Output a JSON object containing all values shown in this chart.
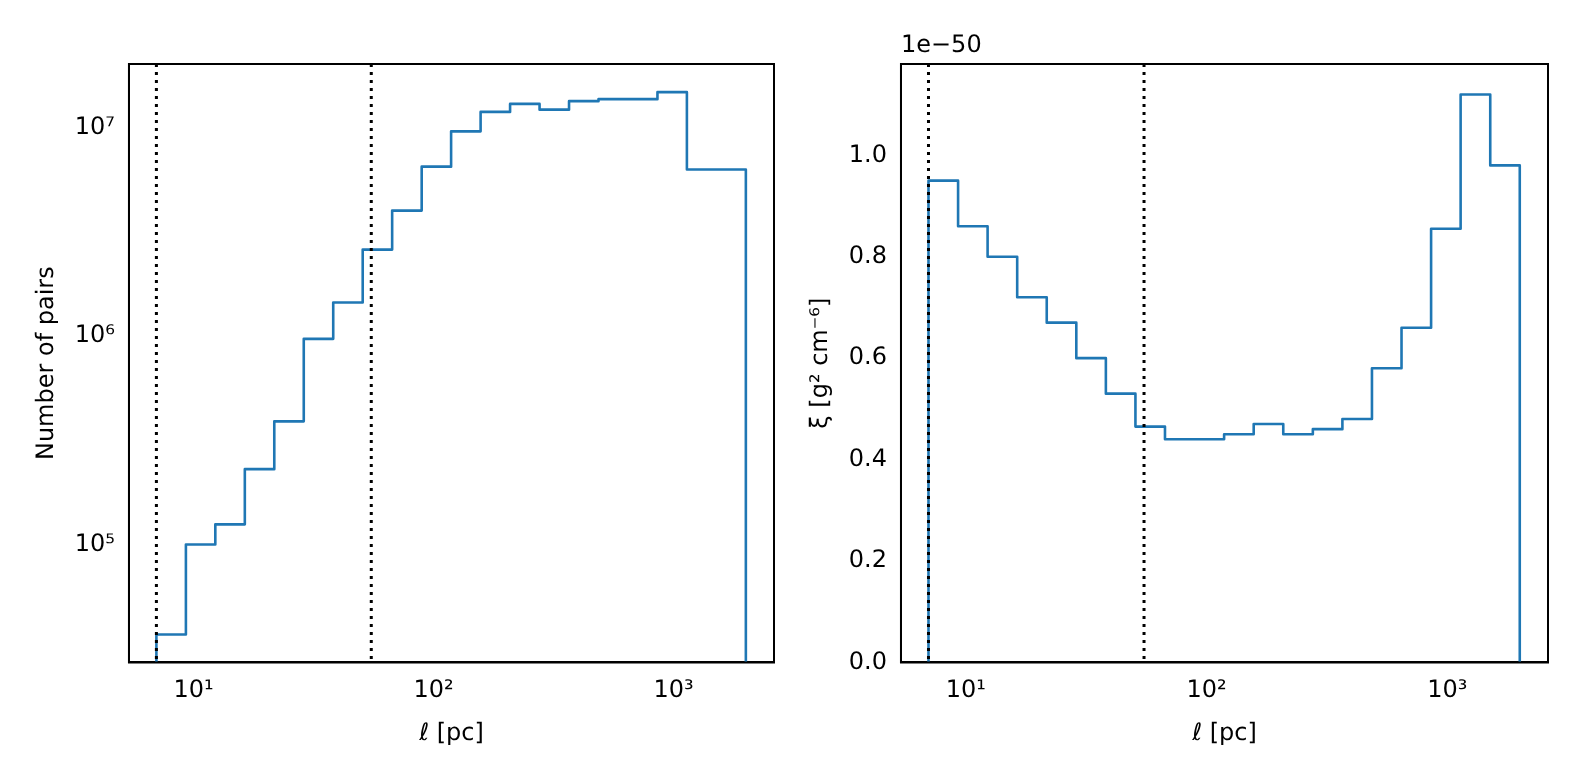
{
  "chart_data": [
    {
      "type": "histogram",
      "xlabel": "ℓ [pc]",
      "ylabel": "Number of pairs",
      "log": "xy",
      "grid": false,
      "legend": false,
      "color": "#1f77b4",
      "bins": [
        7,
        9.29,
        12.32,
        16.35,
        21.69,
        28.78,
        38.18,
        50.66,
        67.2,
        89.2,
        118.3,
        157,
        208.3,
        276.4,
        366.7,
        486.5,
        645.5,
        856.5,
        1136,
        1508,
        2000
      ],
      "values": [
        37000,
        100000,
        125000,
        230000,
        390000,
        970000,
        1450000,
        2600000,
        4000000,
        6500000,
        9600000,
        11900000,
        13000000,
        12200000,
        13400000,
        13700000,
        13700000,
        14800000,
        6300000,
        6300000
      ],
      "xlim": [
        5.38,
        2620
      ],
      "xticks": [
        {
          "value": 10,
          "label": "10¹"
        },
        {
          "value": 100,
          "label": "10²"
        },
        {
          "value": 1000,
          "label": "10³"
        }
      ],
      "ylim": [
        27200,
        20200000
      ],
      "yticks": [
        {
          "value": 100000,
          "label": "10⁵"
        },
        {
          "value": 1000000,
          "label": "10⁶"
        },
        {
          "value": 10000000,
          "label": "10⁷"
        }
      ],
      "ref_lines": [
        {
          "axis": "x",
          "value": 7,
          "label": null,
          "color": "#000000",
          "line_style": "dotted"
        },
        {
          "axis": "x",
          "value": 55,
          "label": null,
          "color": "#000000",
          "line_style": "dotted"
        }
      ]
    },
    {
      "type": "histogram",
      "xlabel": "ℓ [pc]",
      "ylabel": "ξ [g² cm⁻⁶]",
      "log": "x",
      "grid": false,
      "legend": false,
      "color": "#1f77b4",
      "annotations": [
        "1e−50"
      ],
      "bins": [
        7,
        9.29,
        12.32,
        16.35,
        21.69,
        28.78,
        38.18,
        50.66,
        67.2,
        89.2,
        118.3,
        157,
        208.3,
        276.4,
        366.7,
        486.5,
        645.5,
        856.5,
        1136,
        1508,
        2000
      ],
      "values": [
        0.95,
        0.86,
        0.8,
        0.72,
        0.67,
        0.6,
        0.53,
        0.465,
        0.44,
        0.44,
        0.45,
        0.47,
        0.45,
        0.46,
        0.48,
        0.58,
        0.66,
        0.855,
        1.12,
        0.98
      ],
      "xlim": [
        5.38,
        2620
      ],
      "xticks": [
        {
          "value": 10,
          "label": "10¹"
        },
        {
          "value": 100,
          "label": "10²"
        },
        {
          "value": 1000,
          "label": "10³"
        }
      ],
      "ylim": [
        0,
        1.18
      ],
      "yticks": [
        {
          "value": 0,
          "label": "0.0"
        },
        {
          "value": 0.2,
          "label": "0.2"
        },
        {
          "value": 0.4,
          "label": "0.4"
        },
        {
          "value": 0.6,
          "label": "0.6"
        },
        {
          "value": 0.8,
          "label": "0.8"
        },
        {
          "value": 1,
          "label": "1.0"
        }
      ],
      "ref_lines": [
        {
          "axis": "x",
          "value": 7,
          "label": null,
          "color": "#000000",
          "line_style": "dotted"
        },
        {
          "axis": "x",
          "value": 55,
          "label": null,
          "color": "#000000",
          "line_style": "dotted"
        }
      ]
    }
  ]
}
